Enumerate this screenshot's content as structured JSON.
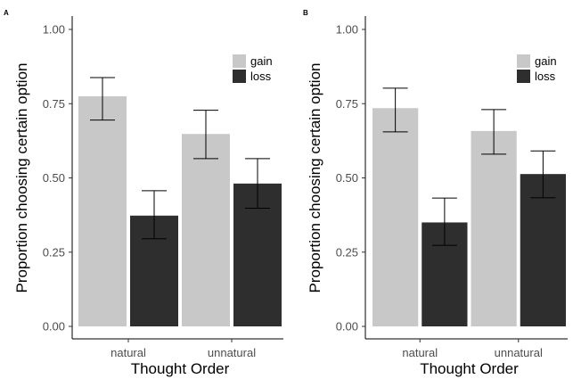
{
  "chart_data": [
    {
      "type": "bar",
      "panel_label": "A",
      "categories": [
        "natural",
        "unnatural"
      ],
      "series": [
        {
          "name": "gain",
          "values": [
            0.775,
            0.648
          ],
          "error_low": [
            0.695,
            0.565
          ],
          "error_high": [
            0.838,
            0.728
          ]
        },
        {
          "name": "loss",
          "values": [
            0.373,
            0.481
          ],
          "error_low": [
            0.295,
            0.398
          ],
          "error_high": [
            0.457,
            0.565
          ]
        }
      ],
      "xlabel": "Thought Order",
      "ylabel": "Proportion choosing certain option",
      "ylim": [
        0,
        1
      ],
      "yticks": [
        "0.00",
        "0.25",
        "0.50",
        "0.75",
        "1.00"
      ],
      "legend_position": "top-right",
      "grid": false
    },
    {
      "type": "bar",
      "panel_label": "B",
      "categories": [
        "natural",
        "unnatural"
      ],
      "series": [
        {
          "name": "gain",
          "values": [
            0.735,
            0.658
          ],
          "error_low": [
            0.655,
            0.58
          ],
          "error_high": [
            0.802,
            0.73
          ]
        },
        {
          "name": "loss",
          "values": [
            0.35,
            0.513
          ],
          "error_low": [
            0.273,
            0.433
          ],
          "error_high": [
            0.432,
            0.591
          ]
        }
      ],
      "xlabel": "Thought Order",
      "ylabel": "Proportion choosing certain option",
      "ylim": [
        0,
        1
      ],
      "yticks": [
        "0.00",
        "0.25",
        "0.50",
        "0.75",
        "1.00"
      ],
      "legend_position": "top-right",
      "grid": false
    }
  ],
  "colors": {
    "gain": "#c8c8c8",
    "loss": "#2e2e2e",
    "axis": "#000000"
  }
}
